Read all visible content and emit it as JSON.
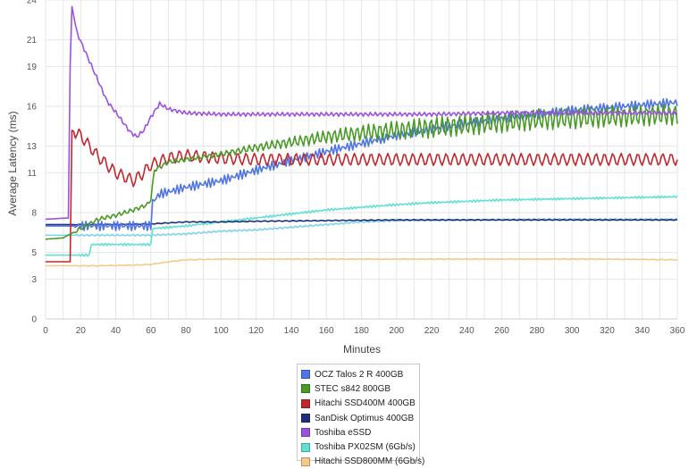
{
  "chart_data": {
    "type": "line",
    "title": "",
    "xlabel": "Minutes",
    "ylabel": "Average Latency (ms)",
    "xlim": [
      0,
      360
    ],
    "ylim": [
      0,
      24
    ],
    "x_ticks": [
      0,
      20,
      40,
      60,
      80,
      100,
      120,
      140,
      160,
      180,
      200,
      220,
      240,
      260,
      280,
      300,
      320,
      340,
      360
    ],
    "y_ticks": [
      0,
      3,
      5,
      8,
      11,
      13,
      16,
      19,
      21,
      24
    ],
    "grid": true,
    "legend_position": "bottom",
    "series": [
      {
        "name": "OCZ Talos 2 R 400GB",
        "color": "#4f74e3",
        "points": [
          [
            0,
            7.0
          ],
          [
            60,
            7.0
          ],
          [
            61,
            8.8
          ],
          [
            65,
            9.4
          ],
          [
            80,
            9.9
          ],
          [
            100,
            10.4
          ],
          [
            120,
            11.2
          ],
          [
            140,
            11.9
          ],
          [
            160,
            12.6
          ],
          [
            180,
            13.2
          ],
          [
            200,
            13.8
          ],
          [
            220,
            14.3
          ],
          [
            240,
            14.7
          ],
          [
            260,
            15.1
          ],
          [
            280,
            15.4
          ],
          [
            300,
            15.7
          ],
          [
            320,
            15.9
          ],
          [
            340,
            16.1
          ],
          [
            360,
            16.3
          ]
        ]
      },
      {
        "name": "STEC s842 800GB",
        "color": "#4a9a26",
        "points": [
          [
            0,
            6.0
          ],
          [
            10,
            6.1
          ],
          [
            20,
            6.8
          ],
          [
            30,
            7.5
          ],
          [
            40,
            7.8
          ],
          [
            50,
            8.2
          ],
          [
            58,
            8.6
          ],
          [
            60,
            9.0
          ],
          [
            62,
            11.2
          ],
          [
            70,
            11.8
          ],
          [
            80,
            12.0
          ],
          [
            100,
            12.4
          ],
          [
            120,
            12.9
          ],
          [
            140,
            13.3
          ],
          [
            160,
            13.7
          ],
          [
            180,
            14.0
          ],
          [
            200,
            14.2
          ],
          [
            220,
            14.4
          ],
          [
            240,
            14.6
          ],
          [
            260,
            14.8
          ],
          [
            280,
            15.0
          ],
          [
            300,
            15.1
          ],
          [
            320,
            15.2
          ],
          [
            340,
            15.3
          ],
          [
            360,
            15.4
          ]
        ]
      },
      {
        "name": "Hitachi SSD400M 400GB",
        "color": "#c0282d",
        "points": [
          [
            0,
            4.3
          ],
          [
            14,
            4.3
          ],
          [
            15,
            14.2
          ],
          [
            20,
            13.8
          ],
          [
            30,
            12.2
          ],
          [
            40,
            11.0
          ],
          [
            50,
            10.4
          ],
          [
            55,
            10.9
          ],
          [
            60,
            11.6
          ],
          [
            70,
            12.1
          ],
          [
            80,
            12.3
          ],
          [
            100,
            12.1
          ],
          [
            120,
            12.0
          ],
          [
            140,
            12.0
          ],
          [
            160,
            12.0
          ],
          [
            180,
            12.0
          ],
          [
            200,
            12.0
          ],
          [
            220,
            12.0
          ],
          [
            240,
            12.0
          ],
          [
            260,
            12.0
          ],
          [
            280,
            12.0
          ],
          [
            300,
            12.0
          ],
          [
            320,
            12.0
          ],
          [
            340,
            12.0
          ],
          [
            360,
            12.0
          ]
        ]
      },
      {
        "name": "SanDisk Optimus 400GB",
        "color": "#1e2e7a",
        "points": [
          [
            0,
            7.1
          ],
          [
            40,
            7.1
          ],
          [
            60,
            7.15
          ],
          [
            80,
            7.3
          ],
          [
            100,
            7.3
          ],
          [
            120,
            7.35
          ],
          [
            160,
            7.4
          ],
          [
            200,
            7.45
          ],
          [
            240,
            7.45
          ],
          [
            280,
            7.45
          ],
          [
            320,
            7.45
          ],
          [
            360,
            7.45
          ]
        ]
      },
      {
        "name": "Toshiba eSSD",
        "color": "#9b51e0",
        "points": [
          [
            0,
            7.5
          ],
          [
            13,
            7.6
          ],
          [
            14,
            19.0
          ],
          [
            15,
            23.5
          ],
          [
            18,
            21.5
          ],
          [
            22,
            20.3
          ],
          [
            28,
            18.5
          ],
          [
            35,
            16.4
          ],
          [
            42,
            15.2
          ],
          [
            48,
            14.1
          ],
          [
            52,
            13.7
          ],
          [
            56,
            14.2
          ],
          [
            60,
            15.2
          ],
          [
            65,
            16.2
          ],
          [
            70,
            15.8
          ],
          [
            80,
            15.5
          ],
          [
            100,
            15.4
          ],
          [
            140,
            15.4
          ],
          [
            180,
            15.4
          ],
          [
            220,
            15.4
          ],
          [
            260,
            15.5
          ],
          [
            300,
            15.5
          ],
          [
            340,
            15.5
          ],
          [
            360,
            15.5
          ]
        ]
      },
      {
        "name": "Toshiba PX02SM (6Gb/s)",
        "color": "#5fe0d3",
        "points": [
          [
            0,
            4.8
          ],
          [
            25,
            4.8
          ],
          [
            26,
            5.6
          ],
          [
            45,
            5.6
          ],
          [
            60,
            5.6
          ],
          [
            61,
            6.8
          ],
          [
            80,
            7.0
          ],
          [
            100,
            7.3
          ],
          [
            120,
            7.6
          ],
          [
            140,
            7.9
          ],
          [
            160,
            8.2
          ],
          [
            180,
            8.4
          ],
          [
            200,
            8.6
          ],
          [
            220,
            8.75
          ],
          [
            240,
            8.85
          ],
          [
            260,
            8.95
          ],
          [
            280,
            9.0
          ],
          [
            300,
            9.05
          ],
          [
            320,
            9.1
          ],
          [
            340,
            9.15
          ],
          [
            360,
            9.2
          ]
        ]
      },
      {
        "name": "Hitachi SSD800MM (6Gb/s)",
        "color": "#f5c98a",
        "points": [
          [
            0,
            4.0
          ],
          [
            30,
            4.0
          ],
          [
            50,
            4.05
          ],
          [
            60,
            4.1
          ],
          [
            70,
            4.3
          ],
          [
            80,
            4.45
          ],
          [
            100,
            4.5
          ],
          [
            140,
            4.5
          ],
          [
            200,
            4.5
          ],
          [
            260,
            4.5
          ],
          [
            320,
            4.5
          ],
          [
            360,
            4.45
          ]
        ]
      },
      {
        "name": "",
        "color": "#7fd3e8",
        "points": [
          [
            0,
            6.3
          ],
          [
            50,
            6.3
          ],
          [
            60,
            6.3
          ],
          [
            80,
            6.4
          ],
          [
            100,
            6.6
          ],
          [
            120,
            6.7
          ],
          [
            140,
            6.9
          ],
          [
            160,
            7.1
          ],
          [
            180,
            7.3
          ],
          [
            200,
            7.4
          ],
          [
            240,
            7.45
          ],
          [
            280,
            7.5
          ],
          [
            320,
            7.5
          ],
          [
            360,
            7.5
          ]
        ]
      }
    ]
  }
}
